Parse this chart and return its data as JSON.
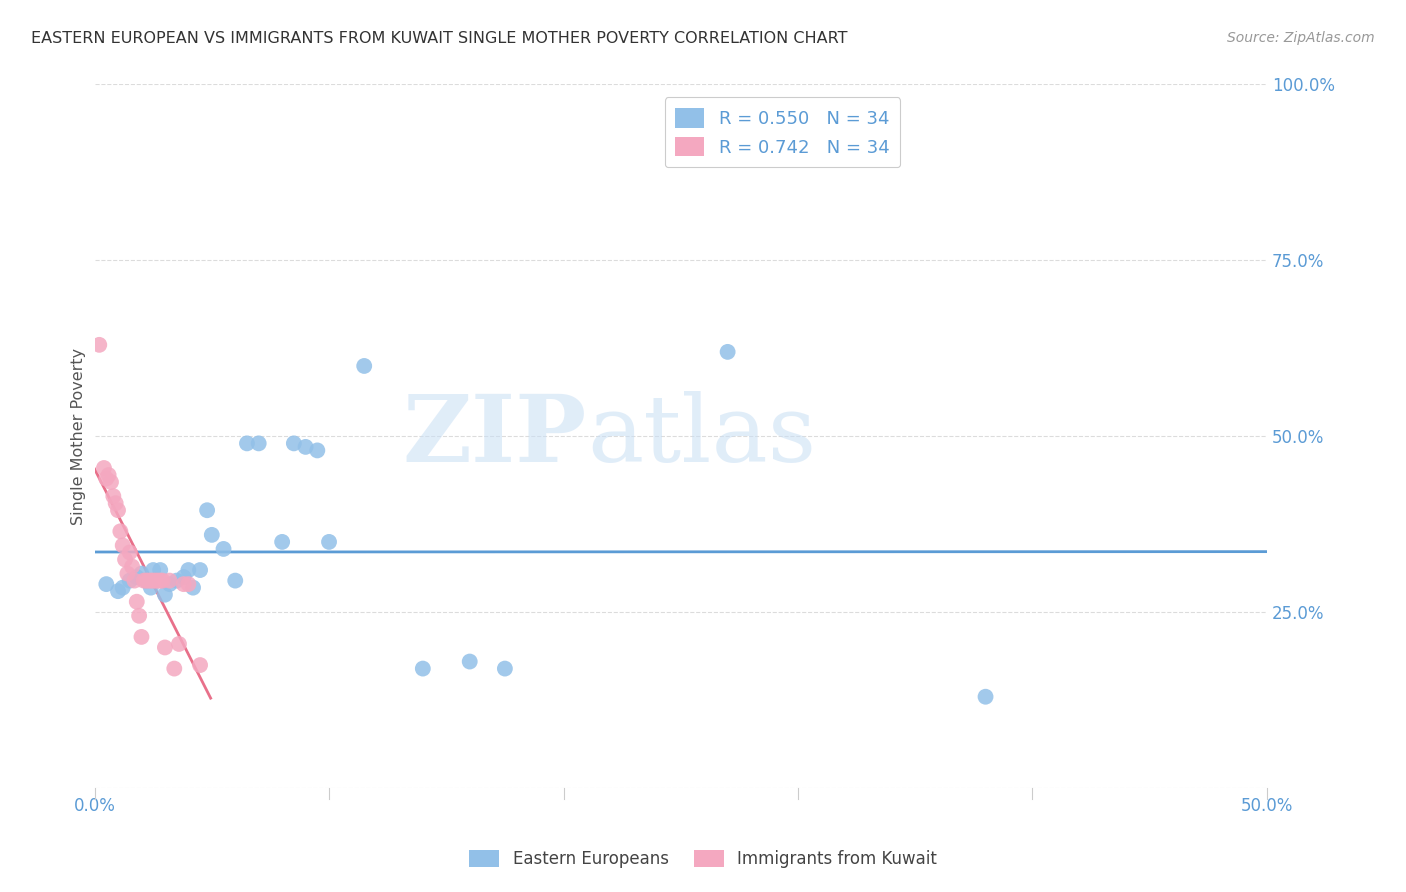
{
  "title": "EASTERN EUROPEAN VS IMMIGRANTS FROM KUWAIT SINGLE MOTHER POVERTY CORRELATION CHART",
  "source": "Source: ZipAtlas.com",
  "ylabel": "Single Mother Poverty",
  "xlim": [
    0,
    0.5
  ],
  "ylim": [
    0,
    1.0
  ],
  "xticks": [
    0.0,
    0.1,
    0.2,
    0.3,
    0.4,
    0.5
  ],
  "xtick_labels": [
    "0.0%",
    "",
    "",
    "",
    "",
    "50.0%"
  ],
  "ytick_labels_right": [
    "",
    "25.0%",
    "50.0%",
    "75.0%",
    "100.0%"
  ],
  "yticks_right": [
    0.0,
    0.25,
    0.5,
    0.75,
    1.0
  ],
  "r_blue": 0.55,
  "n_blue": 34,
  "r_pink": 0.742,
  "n_pink": 34,
  "blue_color": "#92C0E8",
  "pink_color": "#F4A8C0",
  "blue_line_color": "#5B9BD5",
  "pink_line_color": "#E8708A",
  "legend_label_blue": "Eastern Europeans",
  "legend_label_pink": "Immigrants from Kuwait",
  "watermark_zip": "ZIP",
  "watermark_atlas": "atlas",
  "blue_scatter_x": [
    0.005,
    0.01,
    0.012,
    0.015,
    0.018,
    0.02,
    0.022,
    0.024,
    0.025,
    0.028,
    0.03,
    0.032,
    0.035,
    0.038,
    0.04,
    0.042,
    0.045,
    0.048,
    0.05,
    0.055,
    0.06,
    0.065,
    0.07,
    0.08,
    0.085,
    0.09,
    0.095,
    0.1,
    0.115,
    0.14,
    0.16,
    0.175,
    0.27,
    0.38
  ],
  "blue_scatter_y": [
    0.29,
    0.28,
    0.285,
    0.295,
    0.3,
    0.305,
    0.295,
    0.285,
    0.31,
    0.31,
    0.275,
    0.29,
    0.295,
    0.3,
    0.31,
    0.285,
    0.31,
    0.395,
    0.36,
    0.34,
    0.295,
    0.49,
    0.49,
    0.35,
    0.49,
    0.485,
    0.48,
    0.35,
    0.6,
    0.17,
    0.18,
    0.17,
    0.62,
    0.13
  ],
  "pink_scatter_x": [
    0.002,
    0.004,
    0.005,
    0.006,
    0.007,
    0.008,
    0.009,
    0.01,
    0.011,
    0.012,
    0.013,
    0.014,
    0.015,
    0.016,
    0.017,
    0.018,
    0.019,
    0.02,
    0.021,
    0.022,
    0.023,
    0.024,
    0.025,
    0.026,
    0.027,
    0.028,
    0.029,
    0.03,
    0.032,
    0.034,
    0.036,
    0.038,
    0.04,
    0.045
  ],
  "pink_scatter_y": [
    0.63,
    0.455,
    0.44,
    0.445,
    0.435,
    0.415,
    0.405,
    0.395,
    0.365,
    0.345,
    0.325,
    0.305,
    0.335,
    0.315,
    0.295,
    0.265,
    0.245,
    0.215,
    0.295,
    0.295,
    0.295,
    0.295,
    0.295,
    0.295,
    0.295,
    0.295,
    0.295,
    0.2,
    0.295,
    0.17,
    0.205,
    0.29,
    0.29,
    0.175
  ],
  "background_color": "#FFFFFF",
  "grid_color": "#DCDCDC"
}
